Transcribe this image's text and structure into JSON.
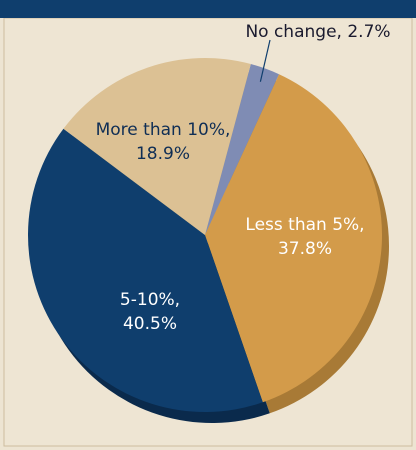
{
  "chart_data": {
    "type": "pie",
    "categories": [
      "No change,",
      "Less than 5%,",
      "5-10%,",
      "More than 10%,"
    ],
    "values": [
      2.7,
      37.8,
      40.5,
      18.9
    ],
    "value_labels": [
      "2.7%",
      "37.8%",
      "40.5%",
      "18.9%"
    ],
    "colors": [
      "#7f8cb4",
      "#d39b4a",
      "#0f3e6d",
      "#dcc194"
    ],
    "shadow_colors": [
      "#5e6a8c",
      "#a87a36",
      "#0a2a4c",
      "#b39a6e"
    ],
    "label_colors": [
      "#1a1a2e",
      "#ffffff",
      "#ffffff",
      "#0f2e55"
    ]
  }
}
